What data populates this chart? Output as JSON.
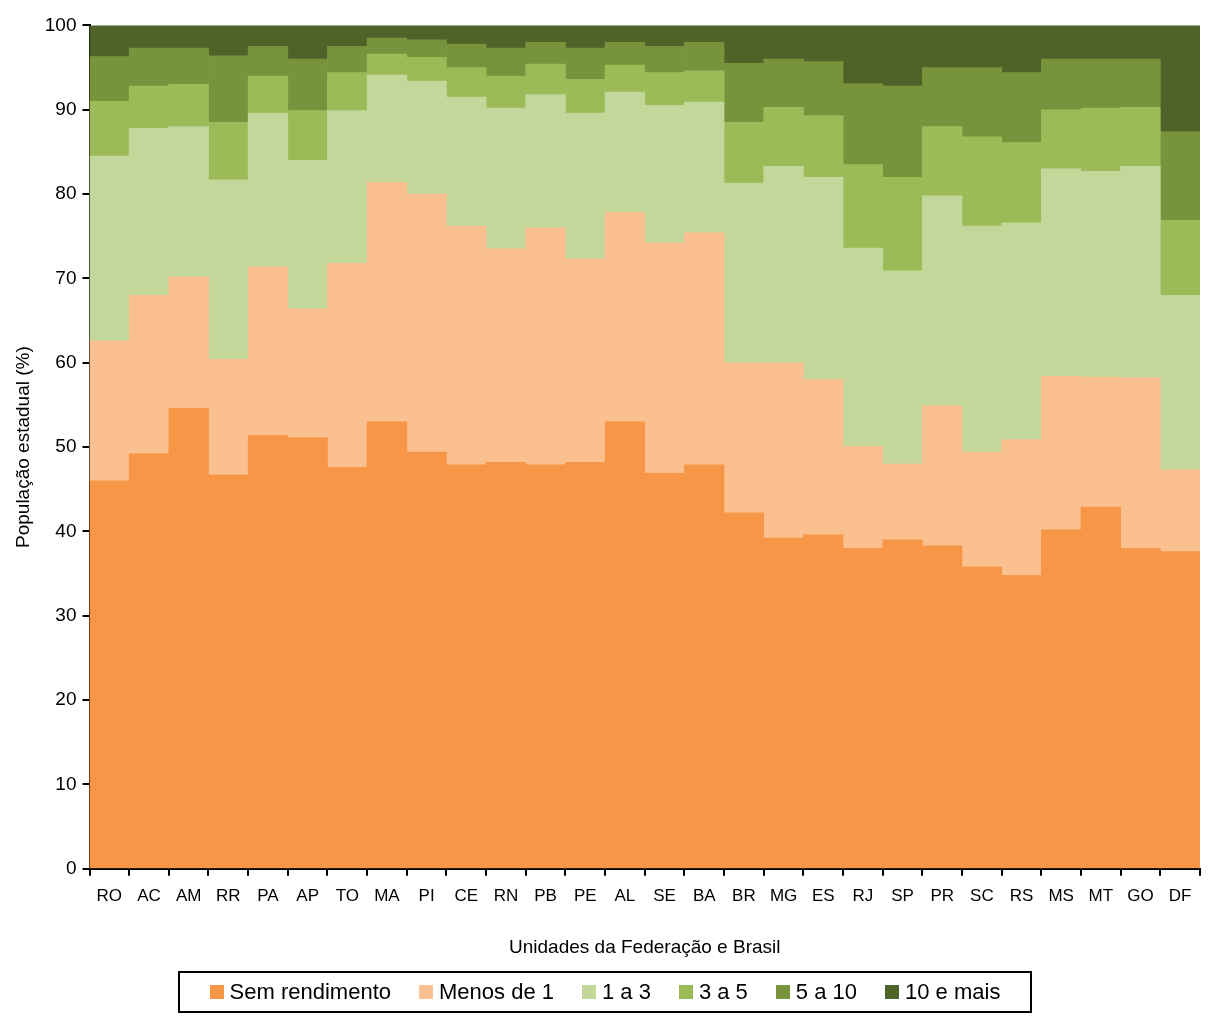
{
  "chart_data": {
    "type": "bar",
    "stacked": true,
    "xlabel": "Unidades da Federação e Brasil",
    "ylabel": "População estadual (%)",
    "categories": [
      "RO",
      "AC",
      "AM",
      "RR",
      "PA",
      "AP",
      "TO",
      "MA",
      "PI",
      "CE",
      "RN",
      "PB",
      "PE",
      "AL",
      "SE",
      "BA",
      "BR",
      "MG",
      "ES",
      "RJ",
      "SP",
      "PR",
      "SC",
      "RS",
      "MS",
      "MT",
      "GO",
      "DF"
    ],
    "ylim": [
      0,
      100
    ],
    "yticks": [
      0,
      10,
      20,
      30,
      40,
      50,
      60,
      70,
      80,
      90,
      100
    ],
    "grid": false,
    "legend": "bottom",
    "series": [
      {
        "name": "Sem rendimento",
        "color": "#f79646",
        "values": [
          46,
          49.2,
          54.6,
          46.7,
          51.4,
          51.1,
          47.6,
          53,
          49.4,
          47.9,
          48.2,
          47.9,
          48.2,
          53,
          46.9,
          47.9,
          42.2,
          39.2,
          39.6,
          38,
          39,
          38.3,
          35.8,
          34.8,
          40.2,
          42.9,
          38,
          37.6
        ]
      },
      {
        "name": "Menos de 1",
        "color": "#fac090",
        "values": [
          16.6,
          18.8,
          15.6,
          13.7,
          20,
          15.3,
          24.2,
          28.4,
          30.6,
          28.3,
          25.3,
          28.1,
          24.1,
          24.8,
          27.3,
          27.5,
          17.8,
          20.8,
          18.4,
          12.1,
          9,
          16.6,
          13.6,
          16.1,
          18.2,
          15.4,
          20.2,
          9.7
        ]
      },
      {
        "name": "1 a 3",
        "color": "#c4d79b",
        "values": [
          21.9,
          19.8,
          17.8,
          21.3,
          18.2,
          17.6,
          18.1,
          12.7,
          13.4,
          15.3,
          16.7,
          15.8,
          17.3,
          14.3,
          16.3,
          15.5,
          21.3,
          23.3,
          24,
          23.5,
          22.9,
          24.9,
          26.8,
          25.7,
          24.6,
          24.4,
          25.1,
          20.7
        ]
      },
      {
        "name": "3 a 5",
        "color": "#9bbb59",
        "values": [
          6.5,
          5,
          5,
          6.8,
          4.4,
          5.9,
          4.5,
          2.5,
          2.8,
          3.5,
          3.8,
          3.6,
          4,
          3.2,
          3.9,
          3.7,
          7.2,
          7,
          7.3,
          9.9,
          11.1,
          8.2,
          10.6,
          9.5,
          7,
          7.5,
          7,
          8.9
        ]
      },
      {
        "name": "5 a 10",
        "color": "#77933c",
        "values": [
          5.3,
          4.5,
          4.3,
          7.9,
          3.5,
          6.1,
          3.1,
          1.9,
          2.1,
          2.8,
          3.3,
          2.6,
          3.7,
          2.7,
          3.1,
          3.4,
          7,
          5.7,
          6.4,
          9.6,
          10.8,
          7,
          8.2,
          8.3,
          6,
          5.8,
          5.7,
          10.5
        ]
      },
      {
        "name": "10 e mais",
        "color": "#4f6228",
        "values": [
          3.7,
          2.7,
          2.7,
          3.6,
          2.5,
          4,
          2.5,
          1.5,
          1.7,
          2.2,
          2.7,
          2,
          2.7,
          2,
          2.5,
          2,
          4.5,
          4,
          4.3,
          6.9,
          7.2,
          5,
          5,
          5.6,
          4,
          4,
          4,
          12.6
        ]
      }
    ]
  }
}
